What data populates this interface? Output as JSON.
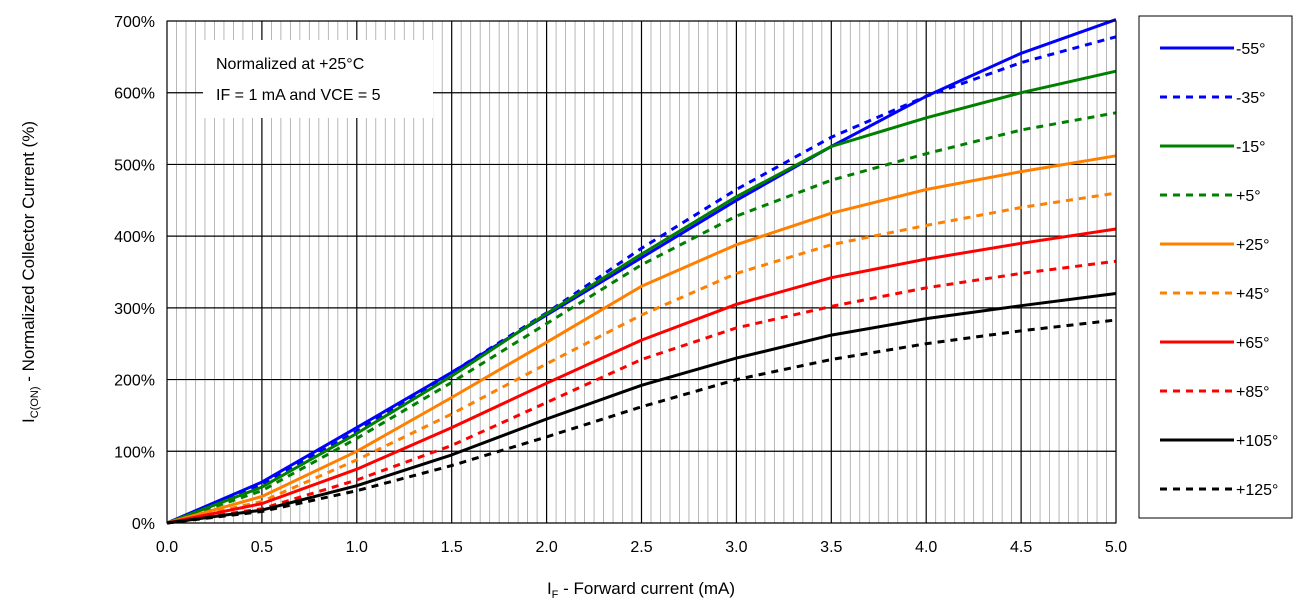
{
  "chart_data": {
    "type": "line",
    "title": "",
    "xlabel_main": "I",
    "xlabel_sub": "F",
    "xlabel_rest": " - Forward current (mA)",
    "ylabel_main": "I",
    "ylabel_sub": "C(ON)",
    "ylabel_rest": " - Normalized Collector Current (%)",
    "xlim": [
      0,
      5
    ],
    "ylim": [
      0,
      700
    ],
    "x_ticks": [
      "0.0",
      "0.5",
      "1.0",
      "1.5",
      "2.0",
      "2.5",
      "3.0",
      "3.5",
      "4.0",
      "4.5",
      "5.0"
    ],
    "y_ticks": [
      "0%",
      "100%",
      "200%",
      "300%",
      "400%",
      "500%",
      "600%",
      "700%"
    ],
    "grid": "on",
    "legend_position": "right",
    "annotation": [
      "Normalized at +25°C",
      "IF = 1 mA and VCE = 5"
    ],
    "x": [
      0,
      0.5,
      1.0,
      1.5,
      2.0,
      2.5,
      3.0,
      3.5,
      4.0,
      4.5,
      5.0
    ],
    "series": [
      {
        "name": "-55°",
        "color": "#0000ff",
        "dash": "solid",
        "values": [
          0,
          57,
          133,
          210,
          290,
          370,
          450,
          525,
          595,
          655,
          702
        ]
      },
      {
        "name": "-35°",
        "color": "#0000ff",
        "dash": "dotted",
        "values": [
          0,
          53,
          128,
          210,
          293,
          383,
          465,
          538,
          595,
          642,
          678
        ]
      },
      {
        "name": "-15°",
        "color": "#008000",
        "dash": "solid",
        "values": [
          0,
          50,
          125,
          205,
          292,
          375,
          455,
          525,
          565,
          600,
          630
        ]
      },
      {
        "name": "+5°",
        "color": "#008000",
        "dash": "dotted",
        "values": [
          0,
          45,
          118,
          196,
          278,
          360,
          428,
          478,
          515,
          548,
          572
        ]
      },
      {
        "name": "+25°",
        "color": "#ff8000",
        "dash": "solid",
        "values": [
          0,
          37,
          100,
          175,
          252,
          330,
          388,
          432,
          465,
          490,
          512
        ]
      },
      {
        "name": "+45°",
        "color": "#ff8000",
        "dash": "dotted",
        "values": [
          0,
          30,
          88,
          152,
          222,
          290,
          348,
          388,
          415,
          440,
          460
        ]
      },
      {
        "name": "+65°",
        "color": "#ff0000",
        "dash": "solid",
        "values": [
          0,
          27,
          75,
          133,
          195,
          255,
          305,
          342,
          368,
          390,
          410
        ]
      },
      {
        "name": "+85°",
        "color": "#ff0000",
        "dash": "dotted",
        "values": [
          0,
          20,
          60,
          108,
          168,
          228,
          272,
          302,
          328,
          348,
          365
        ]
      },
      {
        "name": "+105°",
        "color": "#000000",
        "dash": "solid",
        "values": [
          0,
          18,
          52,
          95,
          145,
          192,
          230,
          262,
          285,
          303,
          320
        ]
      },
      {
        "name": "+125°",
        "color": "#000000",
        "dash": "dotted",
        "values": [
          0,
          16,
          45,
          80,
          120,
          162,
          200,
          228,
          250,
          268,
          283
        ]
      }
    ]
  }
}
